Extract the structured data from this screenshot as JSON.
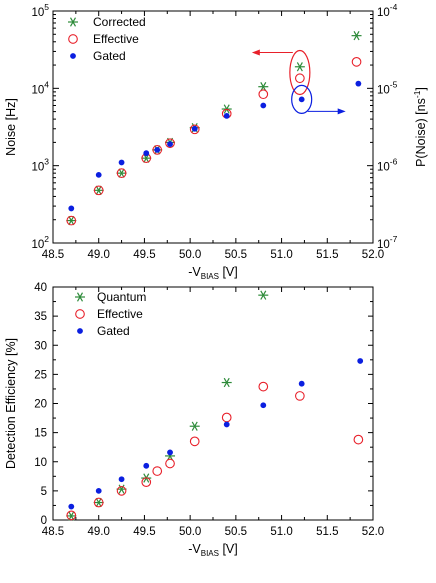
{
  "chart_data": [
    {
      "type": "scatter",
      "title": "",
      "xlabel": "-V",
      "xlabel_sub": "BIAS",
      "xlabel_unit": " [V]",
      "ylabel": "Noise [Hz]",
      "ylabel_right": "P(Noise) [ns",
      "ylabel_right_sup": "-1",
      "ylabel_right_end": "]",
      "xlim": [
        48.5,
        52.0
      ],
      "ylim": [
        100,
        100000
      ],
      "yscale": "log",
      "ylim_right": [
        1e-07,
        0.0001
      ],
      "yscale_right": "log",
      "grid": false,
      "legend_position": "top-left",
      "x_ticks": [
        "48.5",
        "49.0",
        "49.5",
        "50.0",
        "50.5",
        "51.0",
        "51.5",
        "52.0"
      ],
      "y_ticks": [
        {
          "base": "10",
          "exp": "2",
          "value": 100
        },
        {
          "base": "10",
          "exp": "3",
          "value": 1000
        },
        {
          "base": "10",
          "exp": "4",
          "value": 10000
        },
        {
          "base": "10",
          "exp": "5",
          "value": 100000
        }
      ],
      "y_ticks_right": [
        {
          "base": "10",
          "exp": "-7",
          "value": 1e-07
        },
        {
          "base": "10",
          "exp": "-6",
          "value": 1e-06
        },
        {
          "base": "10",
          "exp": "-5",
          "value": 1e-05
        },
        {
          "base": "10",
          "exp": "-4",
          "value": 0.0001
        }
      ],
      "series": [
        {
          "name": "Corrected",
          "marker": "asterisk",
          "color": "#2e8b3a",
          "x": [
            48.7,
            49.0,
            49.25,
            49.52,
            49.64,
            49.78,
            50.05,
            50.4,
            50.8,
            51.82
          ],
          "y": [
            195,
            480,
            800,
            1250,
            1600,
            2000,
            3100,
            5400,
            10500,
            48000
          ]
        },
        {
          "name": "Effective",
          "marker": "open-circle",
          "color": "#e8202a",
          "x": [
            48.7,
            49.0,
            49.25,
            49.52,
            49.64,
            49.78,
            50.05,
            50.4,
            50.8,
            51.82
          ],
          "y": [
            195,
            480,
            800,
            1250,
            1600,
            1950,
            2950,
            4700,
            8400,
            22000
          ]
        },
        {
          "name": "Gated",
          "marker": "filled-circle",
          "color": "#0b1fe0",
          "x": [
            48.7,
            49.0,
            49.25,
            49.52,
            49.64,
            49.78,
            50.05,
            50.4,
            50.8,
            51.84
          ],
          "y": [
            280,
            760,
            1100,
            1450,
            1600,
            1900,
            3000,
            4400,
            6000,
            11500
          ]
        }
      ],
      "annotation": {
        "description": "axis assignment markers",
        "red_ellipse_points": [
          {
            "x": 51.2,
            "y": 19000,
            "marker": "asterisk",
            "color": "#2e8b3a"
          },
          {
            "x": 51.2,
            "y": 13500,
            "marker": "open-circle",
            "color": "#e8202a"
          }
        ],
        "blue_circle_point": {
          "x": 51.22,
          "y": 7200,
          "marker": "filled-circle",
          "color": "#0b1fe0"
        }
      }
    },
    {
      "type": "scatter",
      "title": "",
      "xlabel": "-V",
      "xlabel_sub": "BIAS",
      "xlabel_unit": " [V]",
      "ylabel": "Detection Efficiency [%]",
      "xlim": [
        48.5,
        52.0
      ],
      "ylim": [
        0,
        40
      ],
      "grid": false,
      "legend_position": "top-left",
      "x_ticks": [
        "48.5",
        "49.0",
        "49.5",
        "50.0",
        "50.5",
        "51.0",
        "51.5",
        "52.0"
      ],
      "y_ticks": [
        "0",
        "5",
        "10",
        "15",
        "20",
        "25",
        "30",
        "35",
        "40"
      ],
      "series": [
        {
          "name": "Quantum",
          "marker": "asterisk",
          "color": "#2e8b3a",
          "x": [
            48.7,
            49.0,
            49.25,
            49.52,
            49.78,
            50.05,
            50.4,
            50.8
          ],
          "y": [
            0.7,
            3.0,
            5.3,
            7.2,
            11.0,
            16.1,
            23.6,
            38.6
          ]
        },
        {
          "name": "Effective",
          "marker": "open-circle",
          "color": "#e8202a",
          "x": [
            48.7,
            49.0,
            49.25,
            49.52,
            49.64,
            49.78,
            50.05,
            50.4,
            50.8,
            51.2,
            51.84
          ],
          "y": [
            0.8,
            3.0,
            5.0,
            6.5,
            8.4,
            9.7,
            13.5,
            17.6,
            22.9,
            21.3,
            13.8
          ]
        },
        {
          "name": "Gated",
          "marker": "filled-circle",
          "color": "#0b1fe0",
          "x": [
            48.7,
            49.0,
            49.25,
            49.52,
            49.78,
            50.4,
            50.8,
            51.22,
            51.86
          ],
          "y": [
            2.3,
            5.0,
            7.0,
            9.3,
            11.6,
            16.4,
            19.7,
            23.4,
            27.3
          ]
        }
      ]
    }
  ]
}
